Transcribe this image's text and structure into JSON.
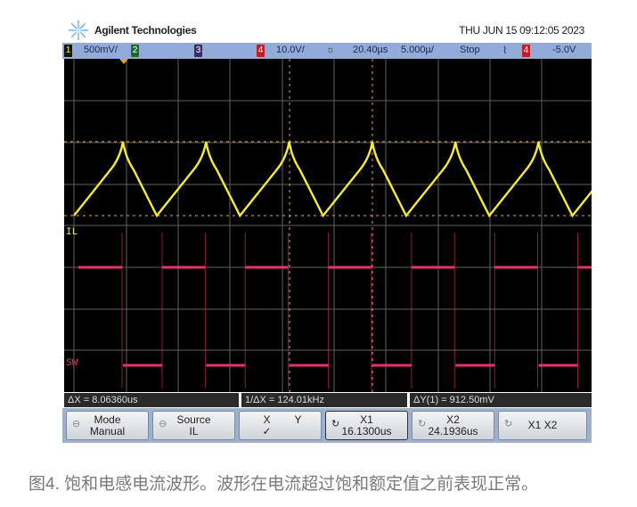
{
  "header": {
    "brand": "Agilent Technologies",
    "datetime": "THU JUN 15 09:12:05 2023"
  },
  "status_bar": {
    "ch1_label": "1",
    "ch1_scale": "500mV/",
    "ch2_label": "2",
    "ch3_label": "3",
    "ch4_label": "4",
    "ch4_scale": "10.0V/",
    "time_offset": "20.40µs",
    "time_scale": "5.000µ/",
    "run_state": "Stop",
    "trigger_slope": "⌇",
    "trigger_channel": "4",
    "trigger_level": "-5.0V"
  },
  "traces": {
    "ch1_name": "IL",
    "ch4_name": "SW",
    "ch1_color": "#f2ea3a",
    "ch4_color": "#e8306e"
  },
  "readouts": {
    "delta_x": "ΔX = 8.06360us",
    "inverse_delta_x": "1/ΔX = 124.01kHz",
    "delta_y": "ΔY(1) = 912.50mV"
  },
  "softkeys": {
    "mode_title": "Mode",
    "mode_value": "Manual",
    "source_title": "Source",
    "source_value": "IL",
    "x_label": "X",
    "y_label": "Y",
    "xy_check": "✓",
    "x1_title": "X1",
    "x1_value": "16.1300us",
    "x2_title": "X2",
    "x2_value": "24.1936us",
    "x1x2_label": "X1 X2"
  },
  "caption": "图4. 饱和电感电流波形。波形在电流超过饱和额定值之前表现正常。"
}
